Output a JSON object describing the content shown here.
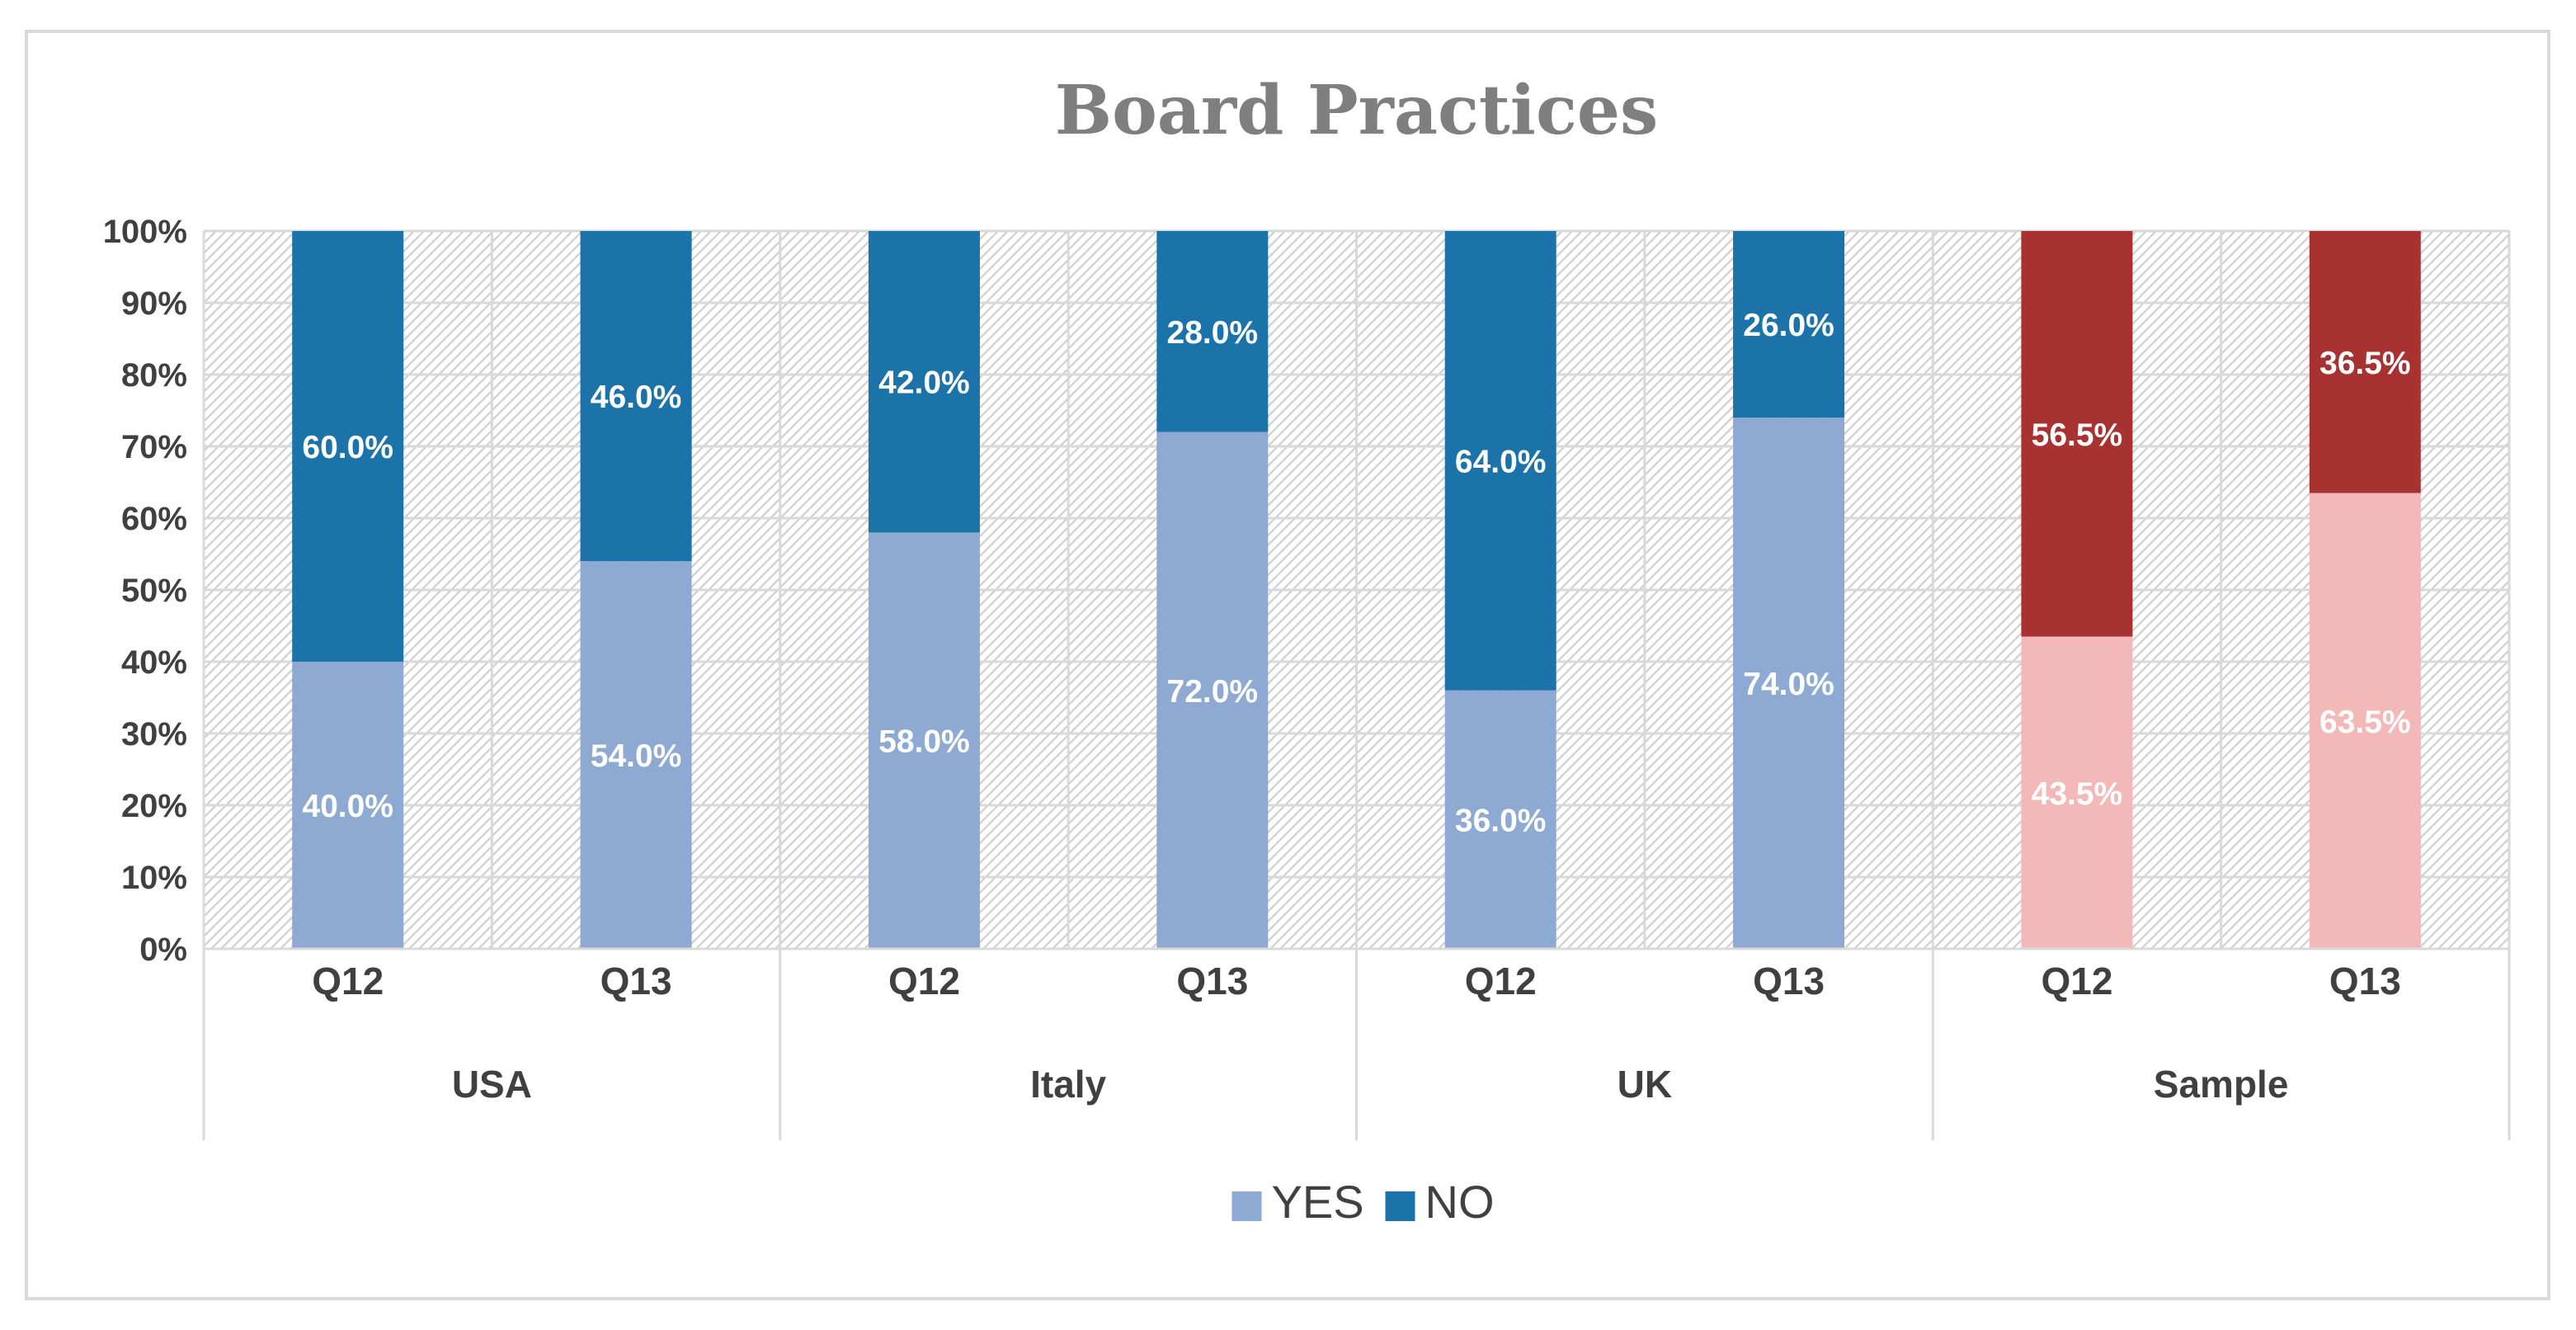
{
  "chart_data": {
    "type": "bar",
    "stacked": true,
    "title": "Board Practices",
    "xlabel": "",
    "ylabel": "",
    "ylim": [
      0,
      100
    ],
    "y_ticks": [
      "0%",
      "10%",
      "20%",
      "30%",
      "40%",
      "50%",
      "60%",
      "70%",
      "80%",
      "90%",
      "100%"
    ],
    "groups": [
      {
        "name": "USA",
        "categories": [
          {
            "label": "Q12",
            "yes": 40.0,
            "no": 60.0,
            "yes_label": "40.0%",
            "no_label": "60.0%"
          },
          {
            "label": "Q13",
            "yes": 54.0,
            "no": 46.0,
            "yes_label": "54.0%",
            "no_label": "46.0%"
          }
        ]
      },
      {
        "name": "Italy",
        "categories": [
          {
            "label": "Q12",
            "yes": 58.0,
            "no": 42.0,
            "yes_label": "58.0%",
            "no_label": "42.0%"
          },
          {
            "label": "Q13",
            "yes": 72.0,
            "no": 28.0,
            "yes_label": "72.0%",
            "no_label": "28.0%"
          }
        ]
      },
      {
        "name": "UK",
        "categories": [
          {
            "label": "Q12",
            "yes": 36.0,
            "no": 64.0,
            "yes_label": "36.0%",
            "no_label": "64.0%"
          },
          {
            "label": "Q13",
            "yes": 74.0,
            "no": 26.0,
            "yes_label": "74.0%",
            "no_label": "26.0%"
          }
        ]
      },
      {
        "name": "Sample",
        "highlight": true,
        "categories": [
          {
            "label": "Q12",
            "yes": 43.5,
            "no": 56.5,
            "yes_label": "43.5%",
            "no_label": "56.5%"
          },
          {
            "label": "Q13",
            "yes": 63.5,
            "no": 36.5,
            "yes_label": "63.5%",
            "no_label": "36.5%"
          }
        ]
      }
    ],
    "series": [
      {
        "name": "YES",
        "key": "yes",
        "color": "#8eaad2",
        "highlight_color": "#f3b8b8"
      },
      {
        "name": "NO",
        "key": "no",
        "color": "#1b73aa",
        "highlight_color": "#a83232"
      }
    ],
    "grid": true,
    "legend": "bottom-center"
  }
}
